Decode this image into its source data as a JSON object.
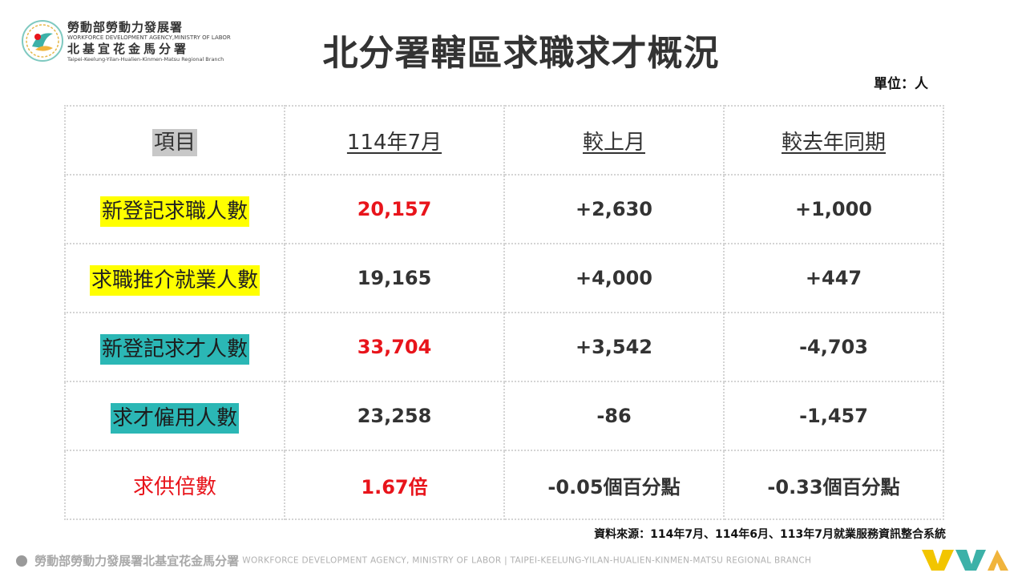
{
  "logo": {
    "line1": "勞動部勞動力發展署",
    "line2": "WORKFORCE DEVELOPMENT AGENCY,MINISTRY OF LABOR",
    "line3": "北基宜花金馬分署",
    "line4": "Taipei-Keelung-Yilan-Hualien-Kinmen-Matsu Regional Branch"
  },
  "title": "北分署轄區求職求才概況",
  "unit": "單位：人",
  "table": {
    "headers": [
      "項目",
      "114年7月",
      "較上月",
      "較去年同期"
    ],
    "rows": [
      {
        "label": "新登記求職人數",
        "current": "20,157",
        "mom": "+2,630",
        "yoy": "+1,000"
      },
      {
        "label": "求職推介就業人數",
        "current": "19,165",
        "mom": "+4,000",
        "yoy": "+447"
      },
      {
        "label": "新登記求才人數",
        "current": "33,704",
        "mom": "+3,542",
        "yoy": "-4,703"
      },
      {
        "label": "求才僱用人數",
        "current": "23,258",
        "mom": "-86",
        "yoy": "-1,457"
      },
      {
        "label": "求供倍數",
        "current": "1.67倍",
        "mom": "-0.05個百分點",
        "yoy": "-0.33個百分點"
      }
    ]
  },
  "source": "資料來源：114年7月、114年6月、113年7月就業服務資訊整合系統",
  "footer": {
    "zh": "勞動部勞動力發展署北基宜花金馬分署",
    "en": "WORKFORCE DEVELOPMENT AGENCY, MINISTRY OF LABOR  |  TAIPEI-KEELUNG-YILAN-HUALIEN-KINMEN-MATSU REGIONAL BRANCH"
  },
  "colors": {
    "highlight_yellow": "#ffff00",
    "highlight_teal": "#2bb7b5",
    "accent_red": "#e8141b"
  }
}
